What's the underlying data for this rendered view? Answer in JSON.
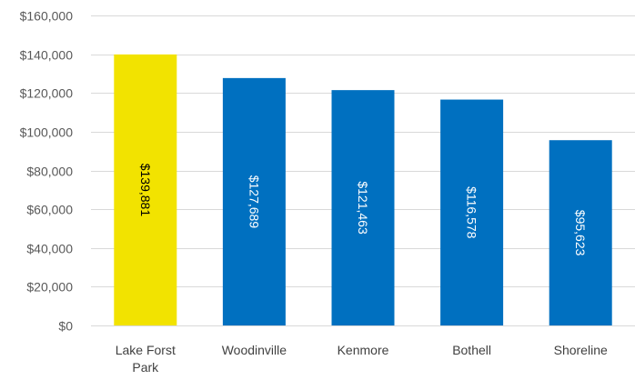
{
  "chart_data": {
    "type": "bar",
    "title": "",
    "xlabel": "",
    "ylabel": "",
    "categories": [
      [
        "Lake Forst",
        "Park"
      ],
      [
        "Woodinville"
      ],
      [
        "Kenmore"
      ],
      [
        "Bothell"
      ],
      [
        "Shoreline"
      ]
    ],
    "values": [
      139881,
      127689,
      121463,
      116578,
      95623
    ],
    "data_labels": [
      "$139,881",
      "$127,689",
      "$121,463",
      "$116,578",
      "$95,623"
    ],
    "ylim": [
      0,
      160000
    ],
    "y_ticks": [
      0,
      20000,
      40000,
      60000,
      80000,
      100000,
      120000,
      140000,
      160000
    ],
    "y_tick_labels": [
      "$0",
      "$20,000",
      "$40,000",
      "$60,000",
      "$80,000",
      "$100,000",
      "$120,000",
      "$140,000",
      "$160,000"
    ],
    "grid": true,
    "legend": "none",
    "colors": {
      "highlight": "#f2e300",
      "default": "#0070c0",
      "label_on_highlight": "#000000",
      "label_on_default": "#ffffff"
    },
    "highlight_index": 0
  }
}
